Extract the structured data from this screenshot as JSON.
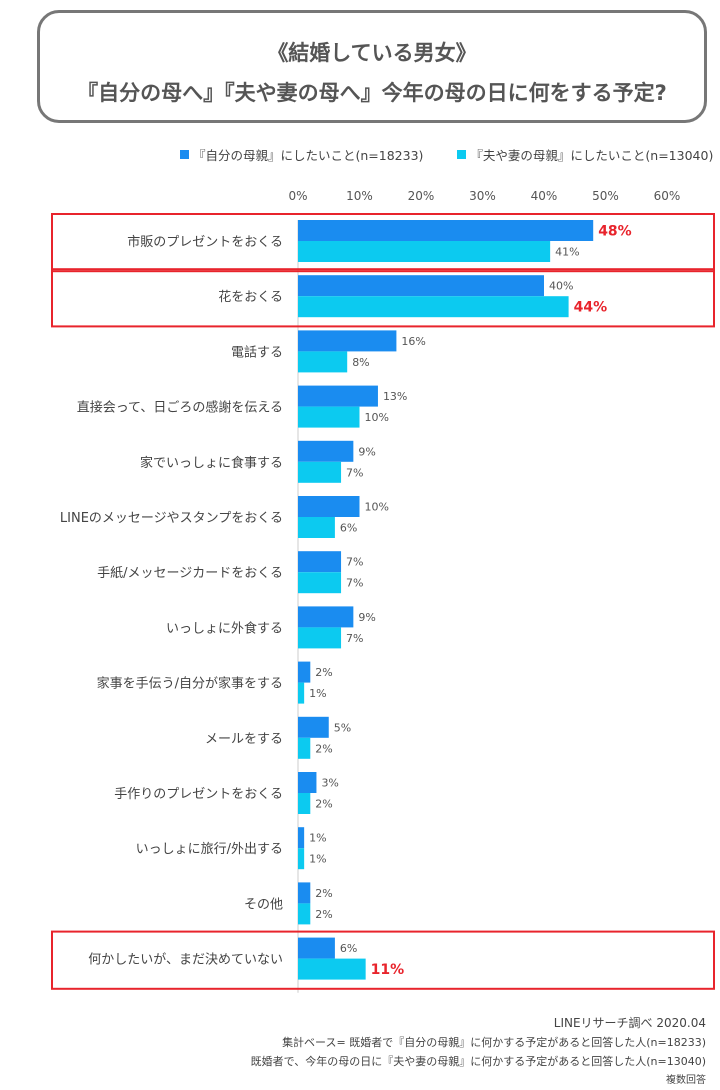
{
  "header": {
    "line1": "《結婚している男女》",
    "line2": "『自分の母へ』『夫や妻の母へ』今年の母の日に何をする予定?"
  },
  "chart_data": {
    "type": "bar",
    "orientation": "horizontal",
    "xlim": [
      0,
      60
    ],
    "ticks": [
      "0%",
      "10%",
      "20%",
      "30%",
      "40%",
      "50%",
      "60%"
    ],
    "tick_values": [
      0,
      10,
      20,
      30,
      40,
      50,
      60
    ],
    "categories": [
      "市販のプレゼントをおくる",
      "花をおくる",
      "電話する",
      "直接会って、日ごろの感謝を伝える",
      "家でいっしょに食事する",
      "LINEのメッセージやスタンプをおくる",
      "手紙/メッセージカードをおくる",
      "いっしょに外食する",
      "家事を手伝う/自分が家事をする",
      "メールをする",
      "手作りのプレゼントをおくる",
      "いっしょに旅行/外出する",
      "その他",
      "何かしたいが、まだ決めていない"
    ],
    "series": [
      {
        "name": "『自分の母親』にしたいこと(n=18233)",
        "color": "#1a8cf0",
        "values": [
          48,
          40,
          16,
          13,
          9,
          10,
          7,
          9,
          2,
          5,
          3,
          1,
          2,
          6
        ],
        "labels": [
          "48%",
          "40%",
          "16%",
          "13%",
          "9%",
          "10%",
          "7%",
          "9%",
          "2%",
          "5%",
          "3%",
          "1%",
          "2%",
          "6%"
        ],
        "highlight": [
          true,
          false,
          false,
          false,
          false,
          false,
          false,
          false,
          false,
          false,
          false,
          false,
          false,
          false
        ]
      },
      {
        "name": "『夫や妻の母親』にしたいこと(n=13040)",
        "color": "#0ccaf0",
        "values": [
          41,
          44,
          8,
          10,
          7,
          6,
          7,
          7,
          1,
          2,
          2,
          1,
          2,
          11
        ],
        "labels": [
          "41%",
          "44%",
          "8%",
          "10%",
          "7%",
          "6%",
          "7%",
          "7%",
          "1%",
          "2%",
          "2%",
          "1%",
          "2%",
          "11%"
        ],
        "highlight": [
          false,
          true,
          false,
          false,
          false,
          false,
          false,
          false,
          false,
          false,
          false,
          false,
          false,
          true
        ]
      }
    ],
    "highlighted_rows": [
      0,
      1,
      13
    ],
    "highlight_color": "#e8242c"
  },
  "footer": {
    "source": "LINEリサーチ調べ 2020.04",
    "base1": "集計ベース= 既婚者で『自分の母親』に何かする予定があると回答した人(n=18233)",
    "base2": "既婚者で、今年の母の日に『夫や妻の母親』に何かする予定があると回答した人(n=13040)",
    "note": "複数回答"
  }
}
